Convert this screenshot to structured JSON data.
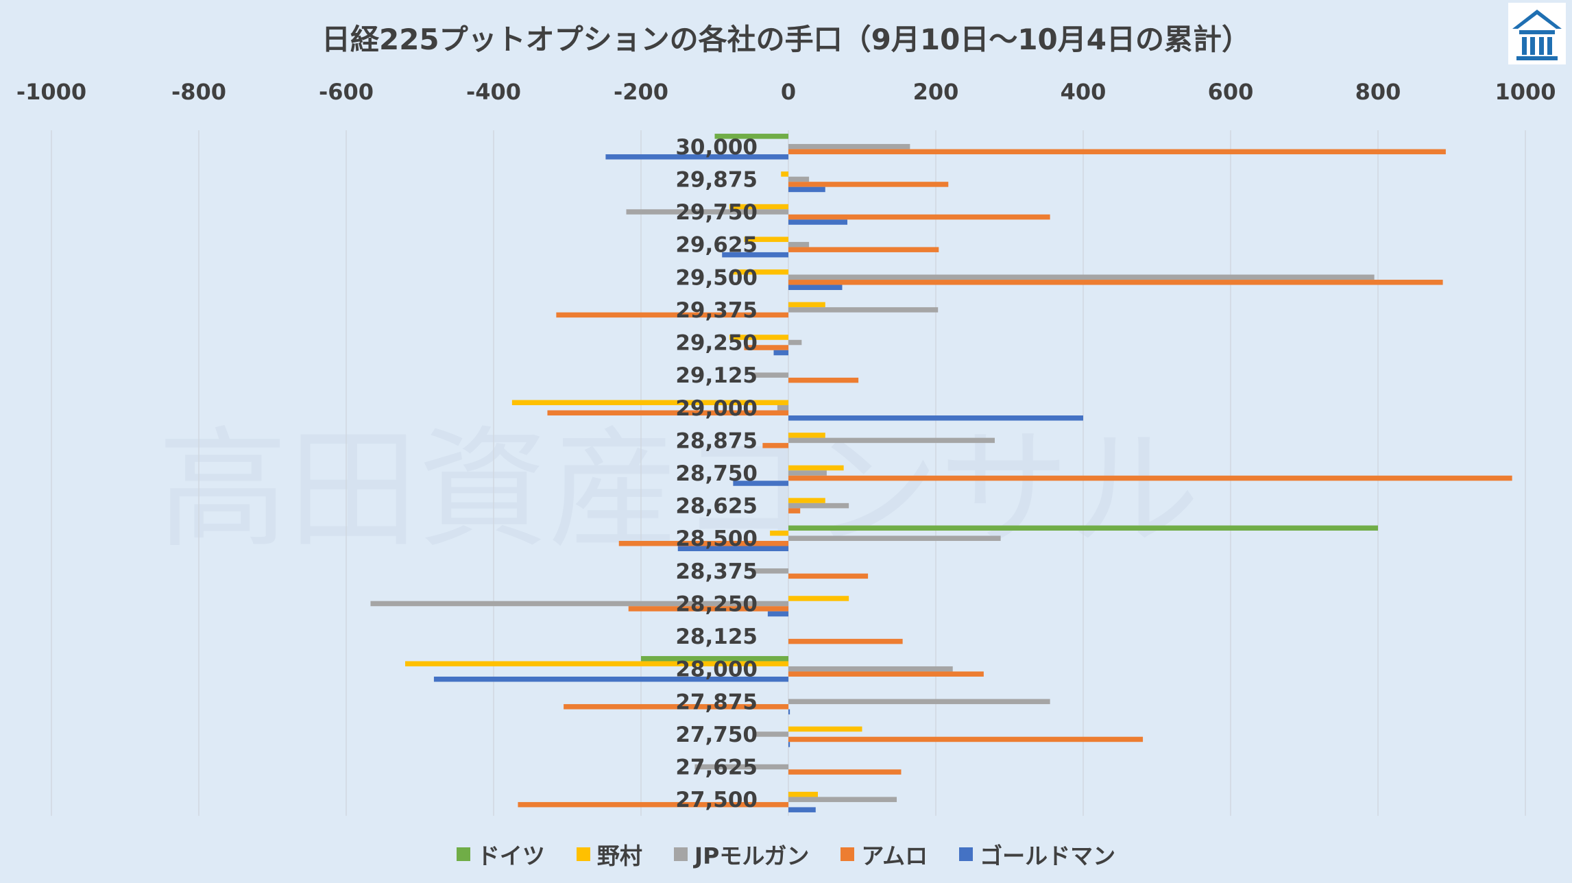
{
  "watermark": "高田資産コンサル",
  "logo_icon": "house-columns-icon",
  "colors": {
    "background": "#deeaf6",
    "grid": "#d0d8e0",
    "logo": "#1f6fb2"
  },
  "chart_data": {
    "type": "bar",
    "orientation": "horizontal",
    "title": "日経225プットオプションの各社の手口（9月10日〜10月4日の累計）",
    "xlim": [
      -1000,
      1000
    ],
    "xticks": [
      -1000,
      -800,
      -600,
      -400,
      -200,
      0,
      200,
      400,
      600,
      800,
      1000
    ],
    "x_axis_position": "top",
    "grid": true,
    "legend_position": "bottom",
    "categories": [
      "30,000",
      "29,875",
      "29,750",
      "29,625",
      "29,500",
      "29,375",
      "29,250",
      "29,125",
      "29,000",
      "28,875",
      "28,750",
      "28,625",
      "28,500",
      "28,375",
      "28,250",
      "28,125",
      "28,000",
      "27,875",
      "27,750",
      "27,625",
      "27,500"
    ],
    "series": [
      {
        "name": "ドイツ",
        "color": "#70ad47",
        "values": [
          -100,
          0,
          0,
          0,
          0,
          0,
          0,
          0,
          0,
          0,
          0,
          0,
          800,
          0,
          0,
          0,
          -200,
          0,
          0,
          0,
          0
        ]
      },
      {
        "name": "野村",
        "color": "#ffc000",
        "values": [
          0,
          -10,
          -80,
          -60,
          -75,
          50,
          -80,
          0,
          -375,
          50,
          75,
          50,
          -25,
          0,
          82,
          0,
          -520,
          0,
          100,
          0,
          40
        ]
      },
      {
        "name": "JPモルガン",
        "color": "#a5a5a5",
        "values": [
          165,
          28,
          -220,
          28,
          795,
          203,
          18,
          -48,
          -15,
          280,
          52,
          82,
          288,
          -48,
          -567,
          0,
          223,
          355,
          -45,
          -127,
          147
        ]
      },
      {
        "name": "アムロ",
        "color": "#ed7d31",
        "values": [
          892,
          217,
          355,
          204,
          888,
          -315,
          -60,
          95,
          -327,
          -35,
          982,
          16,
          -230,
          108,
          -217,
          155,
          265,
          -305,
          481,
          153,
          -367
        ]
      },
      {
        "name": "ゴールドマン",
        "color": "#4472c4",
        "values": [
          -248,
          50,
          80,
          -90,
          73,
          0,
          -20,
          0,
          400,
          0,
          -75,
          0,
          -150,
          0,
          -28,
          0,
          -481,
          2,
          2,
          0,
          37
        ]
      }
    ]
  }
}
